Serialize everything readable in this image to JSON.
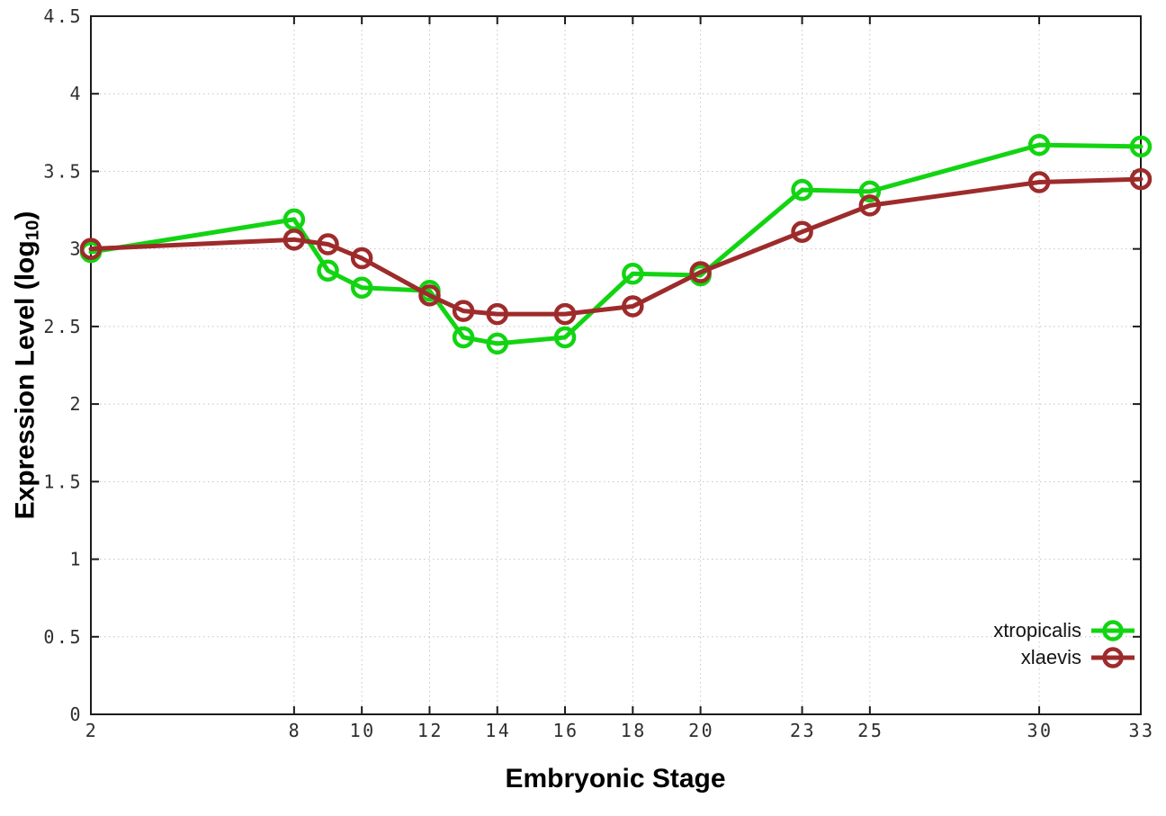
{
  "chart_data": {
    "type": "line",
    "title": "",
    "xlabel": "Embryonic Stage",
    "ylabel": {
      "prefix": "Expression Level (log",
      "subscript": "10",
      "suffix": ")"
    },
    "xlim": [
      2,
      33
    ],
    "ylim": [
      0,
      4.5
    ],
    "xticks": [
      2,
      8,
      10,
      12,
      14,
      16,
      18,
      20,
      23,
      25,
      30,
      33
    ],
    "ytick_labels": [
      "0",
      "0.5",
      "1",
      "1.5",
      "2",
      "2.5",
      "3",
      "3.5",
      "4",
      "4.5"
    ],
    "grid": "dotted-both-axes",
    "legend_position": "inside-bottom-right",
    "x": [
      2,
      8,
      9,
      10,
      12,
      13,
      14,
      16,
      18,
      20,
      23,
      25,
      30,
      33
    ],
    "series": [
      {
        "name": "xtropicalis",
        "color": "#12d412",
        "marker": "open-circle",
        "values": [
          2.98,
          3.19,
          2.86,
          2.75,
          2.73,
          2.43,
          2.39,
          2.43,
          2.84,
          2.83,
          3.38,
          3.37,
          3.67,
          3.66
        ]
      },
      {
        "name": "xlaevis",
        "color": "#9e2b2b",
        "marker": "open-circle",
        "values": [
          3.0,
          3.06,
          3.03,
          2.94,
          2.7,
          2.6,
          2.58,
          2.58,
          2.63,
          2.85,
          3.11,
          3.28,
          3.43,
          3.45
        ]
      }
    ],
    "style": {
      "grid_color": "#c4c4c4",
      "border_color": "#1c1c1c",
      "tick_color": "#1c1c1c",
      "tick_label_color": "#2e2e2e",
      "background": "#ffffff"
    }
  }
}
